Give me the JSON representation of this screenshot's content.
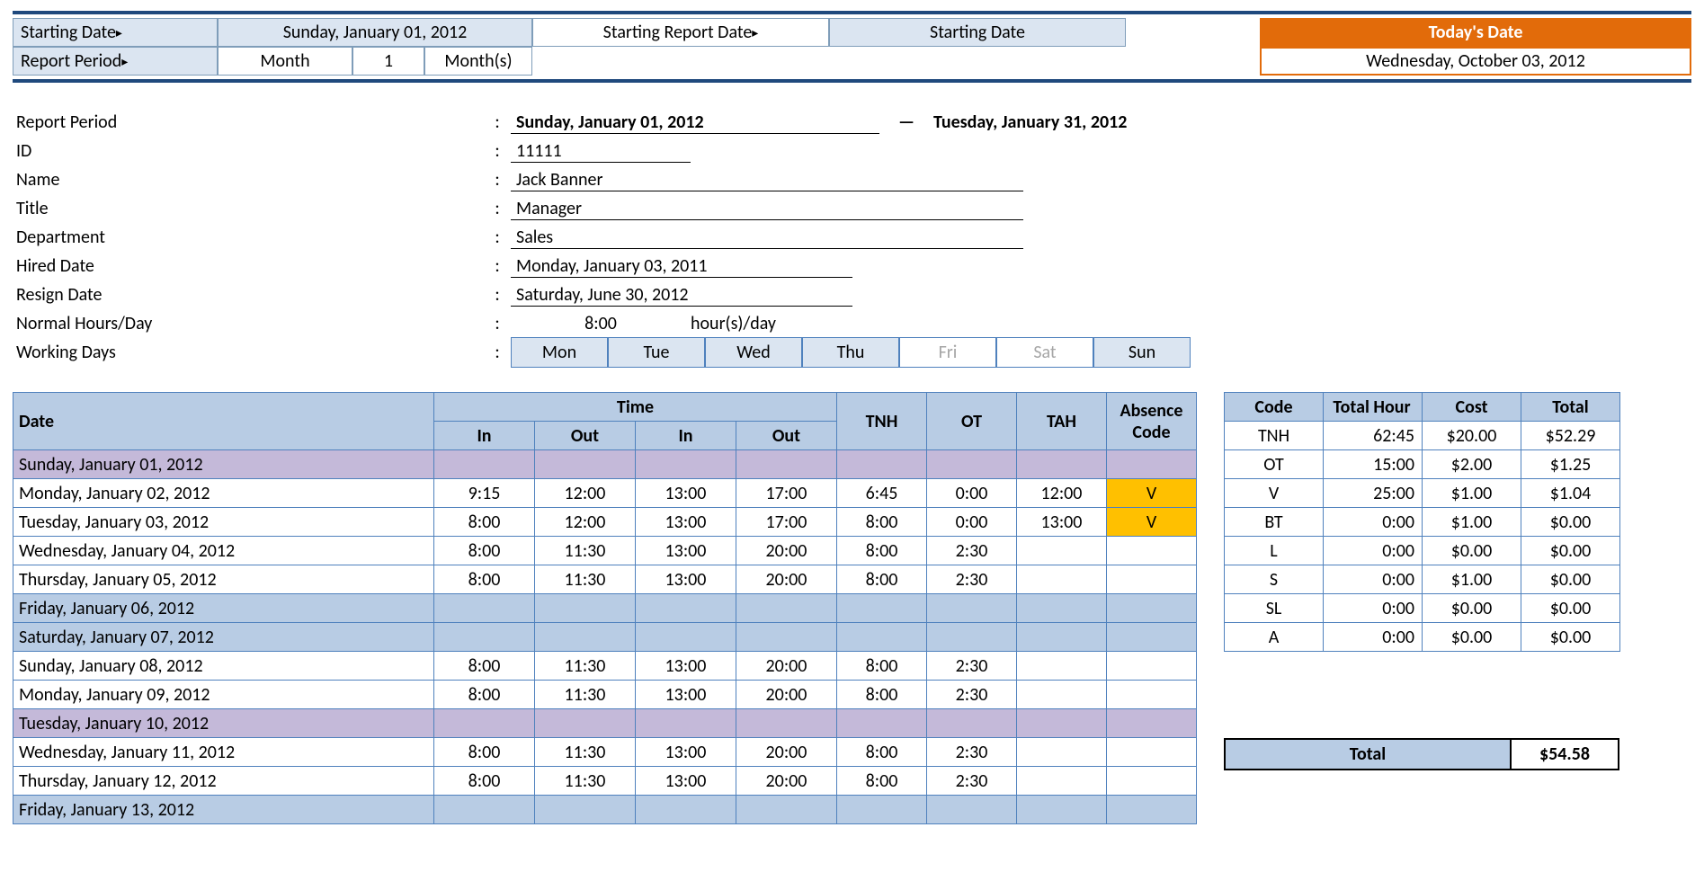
{
  "header": {
    "starting_date_label": "Starting Date",
    "starting_date_value": "Sunday, January 01, 2012",
    "starting_report_date_label": "Starting Report Date",
    "starting_report_date_value": "Starting Date",
    "report_period_label": "Report Period",
    "report_period_unit": "Month",
    "report_period_count": "1",
    "report_period_suffix": "Month(s)",
    "todays_date_label": "Today's Date",
    "todays_date_value": "Wednesday, October 03, 2012"
  },
  "info": {
    "report_period_label": "Report Period",
    "report_period_from": "Sunday, January 01, 2012",
    "report_period_dash": "—",
    "report_period_to": "Tuesday, January 31, 2012",
    "id_label": "ID",
    "id": "11111",
    "name_label": "Name",
    "name": "Jack Banner",
    "title_label": "Title",
    "title": "Manager",
    "dept_label": "Department",
    "dept": "Sales",
    "hired_label": "Hired Date",
    "hired": "Monday, January 03, 2011",
    "resign_label": "Resign Date",
    "resign": "Saturday, June 30, 2012",
    "hours_label": "Normal Hours/Day",
    "hours_val": "8:00",
    "hours_suffix": "hour(s)/day",
    "workdays_label": "Working Days",
    "days": [
      "Mon",
      "Tue",
      "Wed",
      "Thu",
      "Fri",
      "Sat",
      "Sun"
    ],
    "days_off": [
      false,
      false,
      false,
      false,
      true,
      true,
      false
    ]
  },
  "timesheet": {
    "headers": {
      "date": "Date",
      "time": "Time",
      "in": "In",
      "out": "Out",
      "tnh": "TNH",
      "ot": "OT",
      "tah": "TAH",
      "abs": "Absence Code"
    },
    "rows": [
      {
        "date": "Sunday, January 01, 2012",
        "cls": "sun",
        "in1": "",
        "out1": "",
        "in2": "",
        "out2": "",
        "tnh": "",
        "ot": "",
        "tah": "",
        "abs": ""
      },
      {
        "date": "Monday, January 02, 2012",
        "cls": "",
        "in1": "9:15",
        "out1": "12:00",
        "in2": "13:00",
        "out2": "17:00",
        "tnh": "6:45",
        "ot": "0:00",
        "tah": "12:00",
        "abs": "V"
      },
      {
        "date": "Tuesday, January 03, 2012",
        "cls": "",
        "in1": "8:00",
        "out1": "12:00",
        "in2": "13:00",
        "out2": "17:00",
        "tnh": "8:00",
        "ot": "0:00",
        "tah": "13:00",
        "abs": "V"
      },
      {
        "date": "Wednesday, January 04, 2012",
        "cls": "",
        "in1": "8:00",
        "out1": "11:30",
        "in2": "13:00",
        "out2": "20:00",
        "tnh": "8:00",
        "ot": "2:30",
        "tah": "",
        "abs": ""
      },
      {
        "date": "Thursday, January 05, 2012",
        "cls": "",
        "in1": "8:00",
        "out1": "11:30",
        "in2": "13:00",
        "out2": "20:00",
        "tnh": "8:00",
        "ot": "2:30",
        "tah": "",
        "abs": ""
      },
      {
        "date": "Friday, January 06, 2012",
        "cls": "off",
        "in1": "",
        "out1": "",
        "in2": "",
        "out2": "",
        "tnh": "",
        "ot": "",
        "tah": "",
        "abs": ""
      },
      {
        "date": "Saturday, January 07, 2012",
        "cls": "off",
        "in1": "",
        "out1": "",
        "in2": "",
        "out2": "",
        "tnh": "",
        "ot": "",
        "tah": "",
        "abs": ""
      },
      {
        "date": "Sunday, January 08, 2012",
        "cls": "",
        "in1": "8:00",
        "out1": "11:30",
        "in2": "13:00",
        "out2": "20:00",
        "tnh": "8:00",
        "ot": "2:30",
        "tah": "",
        "abs": ""
      },
      {
        "date": "Monday, January 09, 2012",
        "cls": "",
        "in1": "8:00",
        "out1": "11:30",
        "in2": "13:00",
        "out2": "20:00",
        "tnh": "8:00",
        "ot": "2:30",
        "tah": "",
        "abs": ""
      },
      {
        "date": "Tuesday, January 10, 2012",
        "cls": "sun",
        "in1": "",
        "out1": "",
        "in2": "",
        "out2": "",
        "tnh": "",
        "ot": "",
        "tah": "",
        "abs": ""
      },
      {
        "date": "Wednesday, January 11, 2012",
        "cls": "",
        "in1": "8:00",
        "out1": "11:30",
        "in2": "13:00",
        "out2": "20:00",
        "tnh": "8:00",
        "ot": "2:30",
        "tah": "",
        "abs": ""
      },
      {
        "date": "Thursday, January 12, 2012",
        "cls": "",
        "in1": "8:00",
        "out1": "11:30",
        "in2": "13:00",
        "out2": "20:00",
        "tnh": "8:00",
        "ot": "2:30",
        "tah": "",
        "abs": ""
      },
      {
        "date": "Friday, January 13, 2012",
        "cls": "off",
        "in1": "",
        "out1": "",
        "in2": "",
        "out2": "",
        "tnh": "",
        "ot": "",
        "tah": "",
        "abs": ""
      }
    ]
  },
  "summary": {
    "headers": {
      "code": "Code",
      "total_hour": "Total Hour",
      "cost": "Cost",
      "total": "Total"
    },
    "rows": [
      {
        "code": "TNH",
        "hour": "62:45",
        "cost": "$20.00",
        "total": "$52.29"
      },
      {
        "code": "OT",
        "hour": "15:00",
        "cost": "$2.00",
        "total": "$1.25"
      },
      {
        "code": "V",
        "hour": "25:00",
        "cost": "$1.00",
        "total": "$1.04"
      },
      {
        "code": "BT",
        "hour": "0:00",
        "cost": "$1.00",
        "total": "$0.00"
      },
      {
        "code": "L",
        "hour": "0:00",
        "cost": "$0.00",
        "total": "$0.00"
      },
      {
        "code": "S",
        "hour": "0:00",
        "cost": "$1.00",
        "total": "$0.00"
      },
      {
        "code": "SL",
        "hour": "0:00",
        "cost": "$0.00",
        "total": "$0.00"
      },
      {
        "code": "A",
        "hour": "0:00",
        "cost": "$0.00",
        "total": "$0.00"
      }
    ],
    "grand_total_label": "Total",
    "grand_total": "$54.58"
  },
  "colors": {
    "header_bg": "#dbe5f1",
    "orange": "#e26b0a",
    "table_header": "#b8cce4",
    "sunday_row": "#c4b9d9",
    "off_row": "#b8cce4",
    "absence_v": "#ffc000",
    "border_blue": "#4f81bd",
    "rule": "#1f497d"
  }
}
